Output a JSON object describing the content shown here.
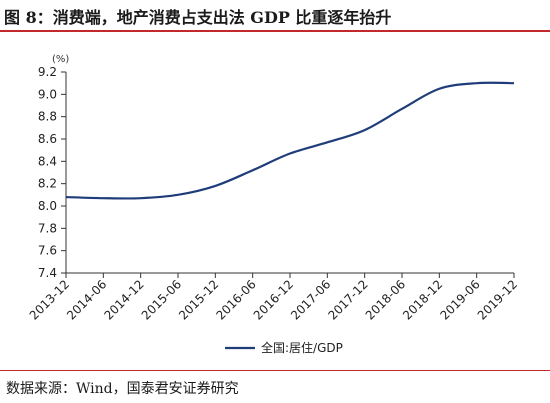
{
  "figure": {
    "title": "图 8：消费端，地产消费占支出法 GDP 比重逐年抬升",
    "source": "数据来源：Wind，国泰君安证券研究"
  },
  "chart_data": {
    "type": "line",
    "y_unit": "(%)",
    "ylim": [
      7.4,
      9.2
    ],
    "yticks": [
      7.4,
      7.6,
      7.8,
      8.0,
      8.2,
      8.4,
      8.6,
      8.8,
      9.0,
      9.2
    ],
    "ytick_labels": [
      "7.4",
      "7.6",
      "7.8",
      "8.0",
      "8.2",
      "8.4",
      "8.6",
      "8.8",
      "9.0",
      "9.2"
    ],
    "categories": [
      "2013-12",
      "2014-06",
      "2014-12",
      "2015-06",
      "2015-12",
      "2016-06",
      "2016-12",
      "2017-06",
      "2017-12",
      "2018-06",
      "2018-12",
      "2019-06",
      "2019-12"
    ],
    "grid": false,
    "legend_position": "bottom",
    "series": [
      {
        "name": "全国:居住/GDP",
        "color": "#1f3d7a",
        "values": [
          8.08,
          8.07,
          8.07,
          8.1,
          8.18,
          8.32,
          8.47,
          8.57,
          8.68,
          8.87,
          9.05,
          9.1,
          9.1
        ]
      }
    ]
  }
}
